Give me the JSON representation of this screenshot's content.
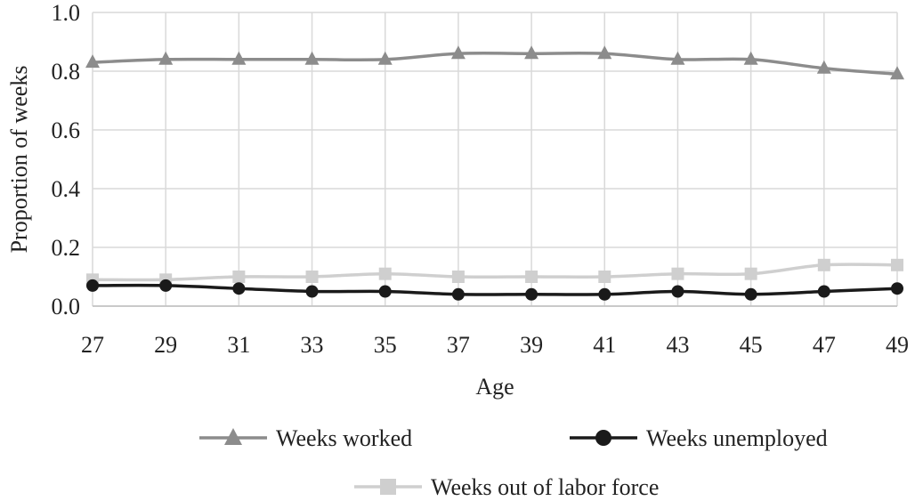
{
  "chart_data": {
    "type": "line",
    "xlabel": "Age",
    "ylabel": "Proportion of weeks",
    "x": [
      27,
      29,
      31,
      33,
      35,
      37,
      39,
      41,
      43,
      45,
      47,
      49
    ],
    "xlim": [
      27,
      49
    ],
    "ylim": [
      0,
      1.0
    ],
    "yticks": [
      "0.0",
      "0.2",
      "0.4",
      "0.6",
      "0.8",
      "1.0"
    ],
    "xticks": [
      "27",
      "29",
      "31",
      "33",
      "35",
      "37",
      "39",
      "41",
      "43",
      "45",
      "47",
      "49"
    ],
    "grid": true,
    "legend_position": "bottom",
    "series": [
      {
        "name": "Weeks worked",
        "marker": "triangle",
        "color": "#8c8c8c",
        "values": [
          0.83,
          0.84,
          0.84,
          0.84,
          0.84,
          0.86,
          0.86,
          0.86,
          0.84,
          0.84,
          0.81,
          0.79
        ]
      },
      {
        "name": "Weeks unemployed",
        "marker": "circle",
        "color": "#1a1a1a",
        "values": [
          0.07,
          0.07,
          0.06,
          0.05,
          0.05,
          0.04,
          0.04,
          0.04,
          0.05,
          0.04,
          0.05,
          0.06
        ]
      },
      {
        "name": "Weeks out of labor force",
        "marker": "square",
        "color": "#cfcfcf",
        "values": [
          0.09,
          0.09,
          0.1,
          0.1,
          0.11,
          0.1,
          0.1,
          0.1,
          0.11,
          0.11,
          0.14,
          0.14
        ]
      }
    ]
  }
}
